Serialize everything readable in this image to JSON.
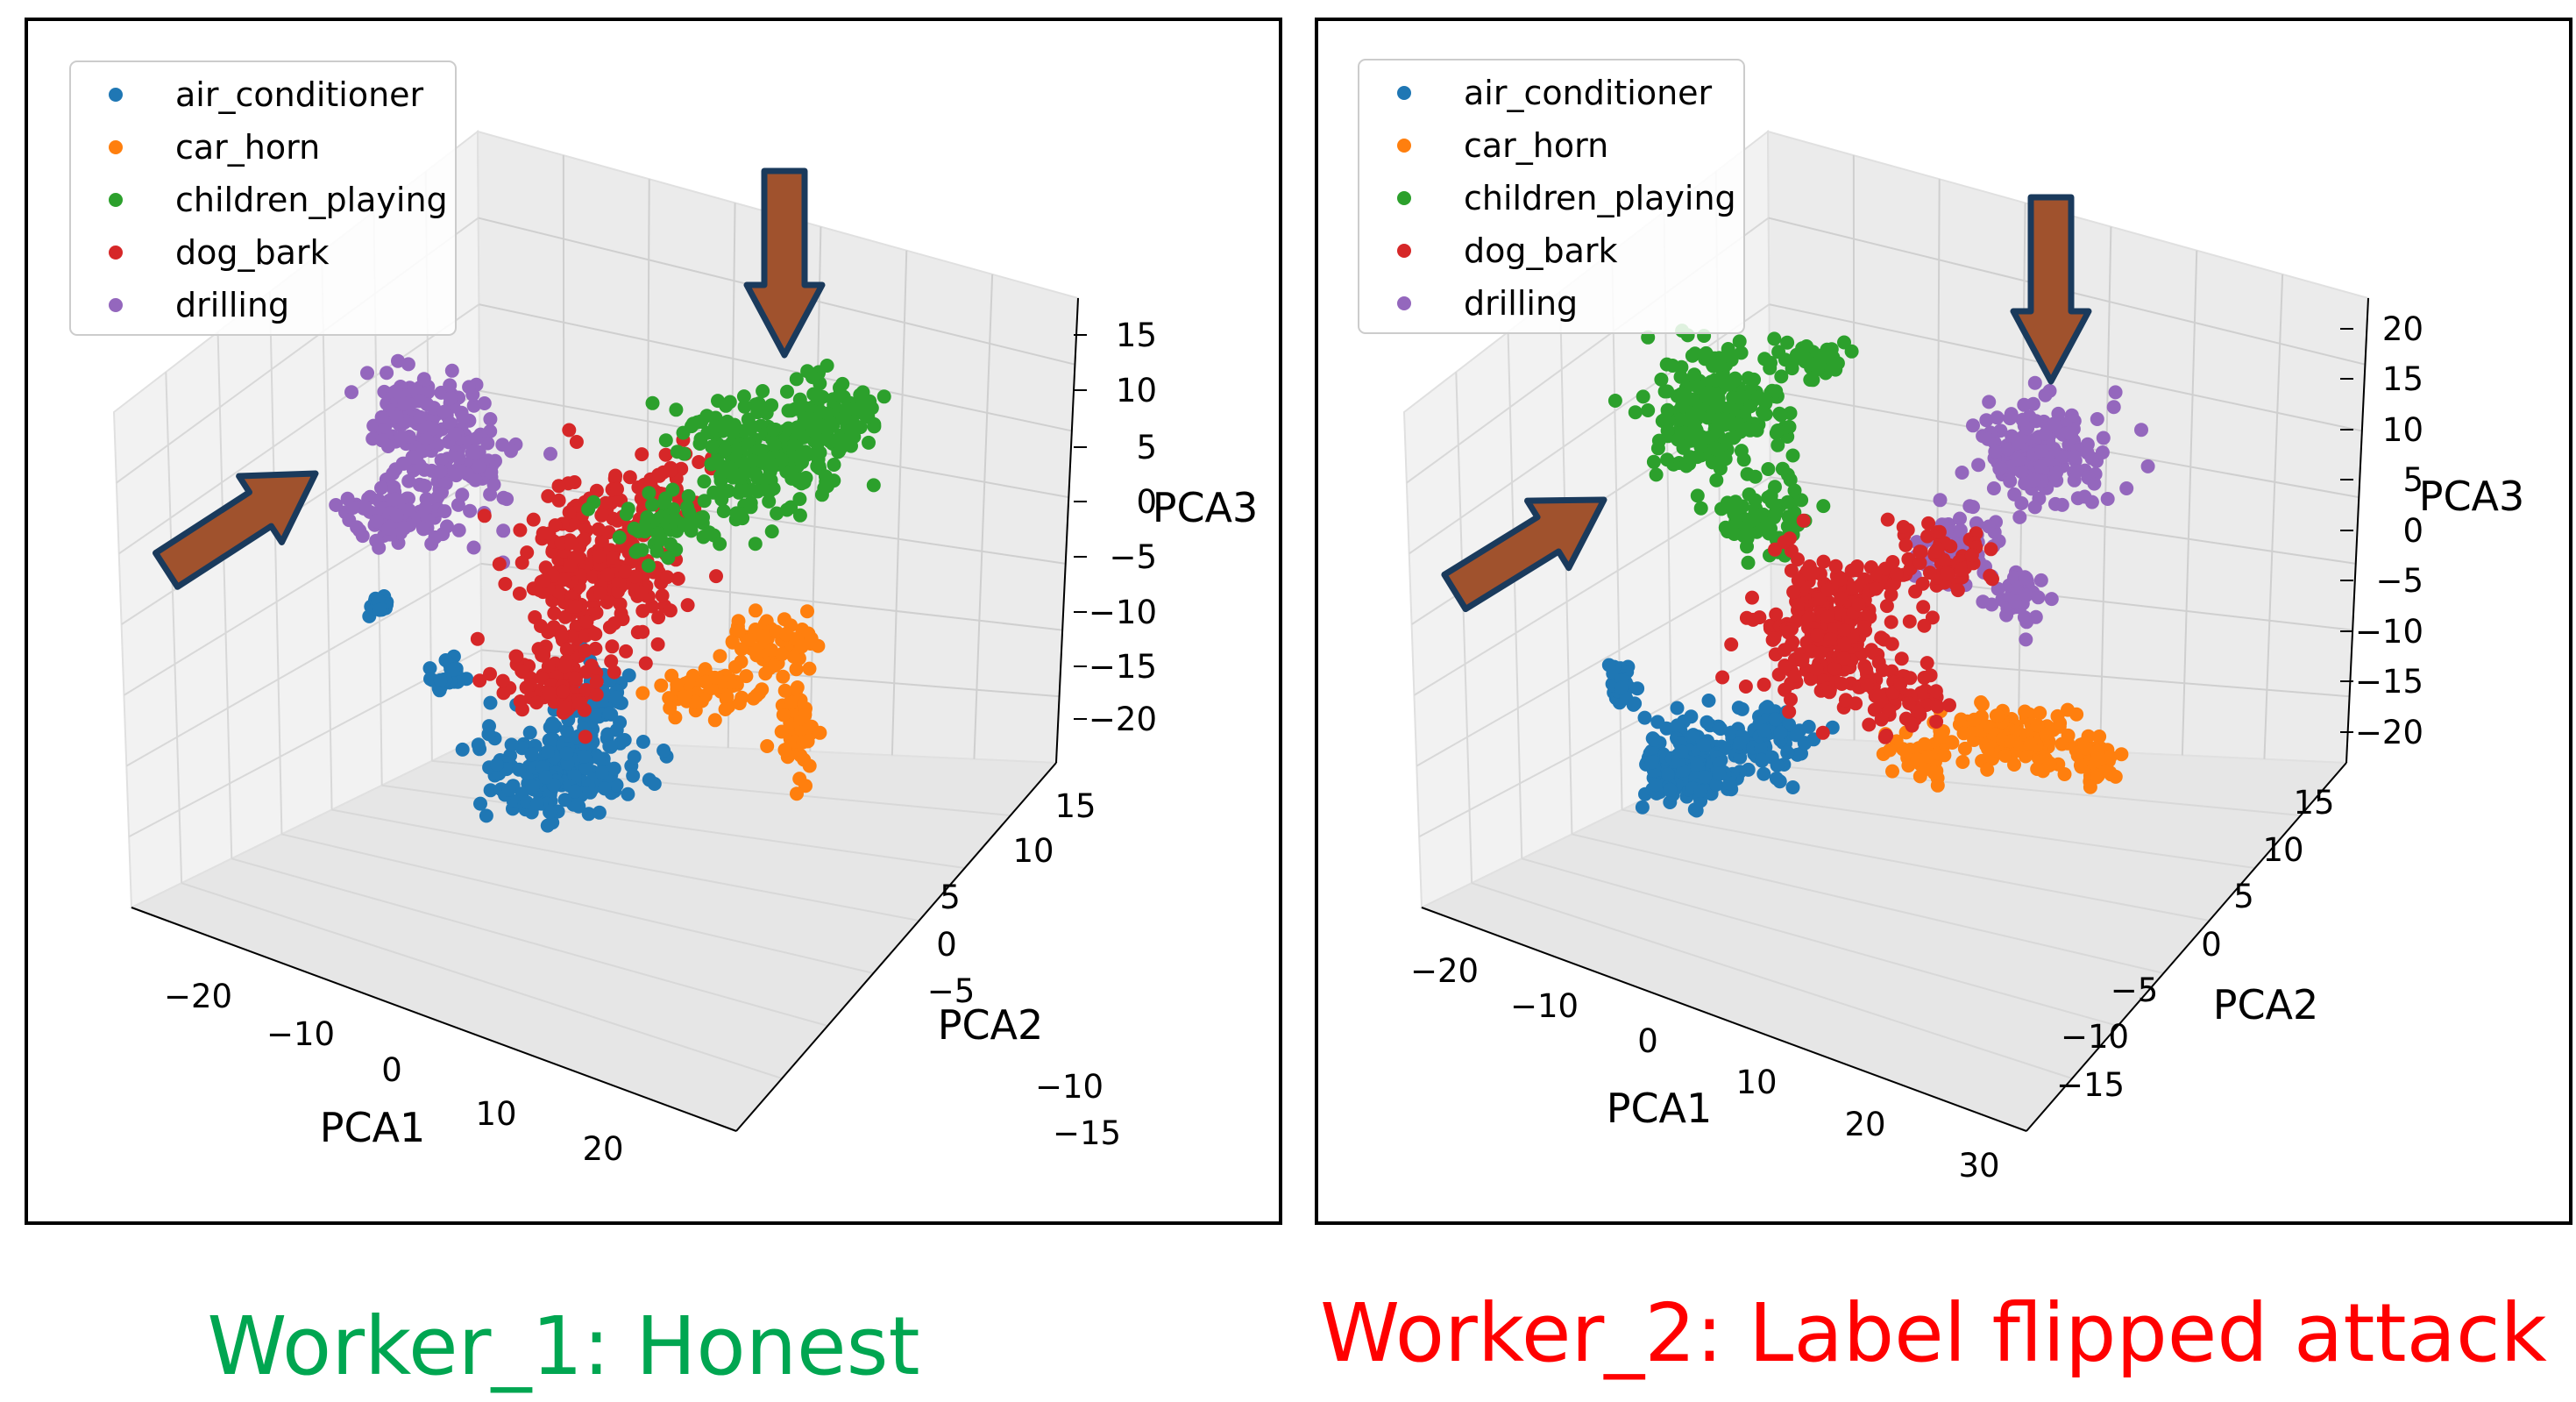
{
  "colors": {
    "air_conditioner": "#1f77b4",
    "car_horn": "#ff7f0e",
    "children_playing": "#2ca02c",
    "dog_bark": "#d62728",
    "drilling": "#9467bd",
    "arrow_fill": "#a0522d",
    "arrow_stroke": "#1a3a5c",
    "caption_honest": "#00a651",
    "caption_attack": "#ff0000"
  },
  "captions": {
    "left": "Worker_1: Honest",
    "right": "Worker_2: Label flipped attack"
  },
  "chart_data": [
    {
      "type": "scatter",
      "projection": "3d",
      "grid": true,
      "legend_position": "top-left",
      "legend": [
        "air_conditioner",
        "car_horn",
        "children_playing",
        "dog_bark",
        "drilling"
      ],
      "xlabel": "PCA1",
      "ylabel": "PCA2",
      "zlabel": "PCA3",
      "x_ticks": [
        "−20",
        "−10",
        "0",
        "10",
        "20"
      ],
      "y_ticks": [
        "−15",
        "−10",
        "−5",
        "0",
        "5",
        "10",
        "15"
      ],
      "z_ticks": [
        "15",
        "10",
        "5",
        "0",
        "−5",
        "−10",
        "−15",
        "−20"
      ],
      "xlim": [
        -25,
        25
      ],
      "ylim": [
        -17,
        17
      ],
      "zlim": [
        -23,
        17
      ],
      "clusters": [
        {
          "name": "air_conditioner",
          "points_approx": 320,
          "center": [
            3,
            -13,
            -14
          ]
        },
        {
          "name": "car_horn",
          "points_approx": 220,
          "center": [
            16,
            -2,
            -10
          ]
        },
        {
          "name": "children_playing",
          "points_approx": 380,
          "center": [
            20,
            5,
            8
          ]
        },
        {
          "name": "dog_bark",
          "points_approx": 400,
          "center": [
            5,
            0,
            -3
          ]
        },
        {
          "name": "drilling",
          "points_approx": 280,
          "center": [
            -15,
            10,
            9
          ]
        }
      ],
      "annotations": [
        "arrow pointing at drilling cluster",
        "arrow pointing at children_playing cluster"
      ]
    },
    {
      "type": "scatter",
      "projection": "3d",
      "grid": true,
      "legend_position": "top-left",
      "legend": [
        "air_conditioner",
        "car_horn",
        "children_playing",
        "dog_bark",
        "drilling"
      ],
      "xlabel": "PCA1",
      "ylabel": "PCA2",
      "zlabel": "PCA3",
      "x_ticks": [
        "−20",
        "−10",
        "0",
        "10",
        "20",
        "30"
      ],
      "y_ticks": [
        "−15",
        "−10",
        "−5",
        "0",
        "5",
        "10",
        "15"
      ],
      "z_ticks": [
        "20",
        "15",
        "10",
        "5",
        "0",
        "−5",
        "−10",
        "−15",
        "−20"
      ],
      "xlim": [
        -25,
        30
      ],
      "ylim": [
        -17,
        17
      ],
      "zlim": [
        -22,
        22
      ],
      "clusters": [
        {
          "name": "air_conditioner",
          "points_approx": 320,
          "center": [
            -8,
            -12,
            -15
          ]
        },
        {
          "name": "car_horn",
          "points_approx": 220,
          "center": [
            22,
            -5,
            -10
          ]
        },
        {
          "name": "children_playing",
          "points_approx": 380,
          "center": [
            -13,
            10,
            9
          ]
        },
        {
          "name": "dog_bark",
          "points_approx": 400,
          "center": [
            8,
            -2,
            -3
          ]
        },
        {
          "name": "drilling",
          "points_approx": 280,
          "center": [
            22,
            8,
            8
          ]
        }
      ],
      "annotations": [
        "arrow pointing at children_playing cluster",
        "arrow pointing at drilling cluster"
      ]
    }
  ]
}
